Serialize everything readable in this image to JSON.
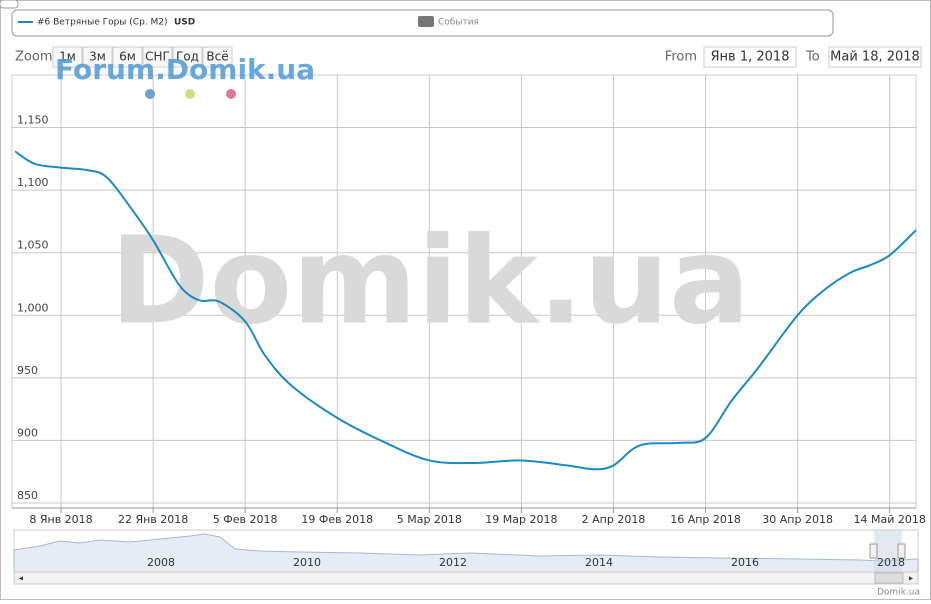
{
  "legend": {
    "series_unit": "USD",
    "events": "События"
  },
  "zoom": {
    "label": "Zoom",
    "buttons": [
      "1м",
      "3м",
      "6м",
      "СНГ",
      "Год",
      "Всё"
    ]
  },
  "range": {
    "from_label": "From",
    "from": "Янв 1, 2018",
    "to_label": "To",
    "to": "Май 18, 2018"
  },
  "watermarks": {
    "forum": "Forum.Domik.ua",
    "main": "Domik.ua"
  },
  "navigator": {
    "years": [
      "2008",
      "2010",
      "2012",
      "2014",
      "2016",
      "2018"
    ]
  },
  "credit": "Domik.ua",
  "chart_data": {
    "type": "line",
    "x": [
      "2018-01-01",
      "2018-01-04",
      "2018-01-08",
      "2018-01-12",
      "2018-01-15",
      "2018-01-19",
      "2018-01-22",
      "2018-01-26",
      "2018-01-29",
      "2018-02-01",
      "2018-02-05",
      "2018-02-08",
      "2018-02-12",
      "2018-02-19",
      "2018-02-26",
      "2018-03-05",
      "2018-03-12",
      "2018-03-19",
      "2018-03-26",
      "2018-03-30",
      "2018-04-02",
      "2018-04-06",
      "2018-04-12",
      "2018-04-16",
      "2018-04-20",
      "2018-04-24",
      "2018-04-30",
      "2018-05-04",
      "2018-05-08",
      "2018-05-11",
      "2018-05-14",
      "2018-05-18"
    ],
    "series": [
      {
        "name": "#6 Ветряные Горы (Ср. М2)",
        "color": "#1a8bc4",
        "values": [
          1131,
          1121,
          1118,
          1116,
          1110,
          1083,
          1060,
          1024,
          1012,
          1011,
          995,
          968,
          944,
          918,
          899,
          884,
          882,
          884,
          880,
          877,
          880,
          896,
          898,
          902,
          932,
          958,
          1000,
          1020,
          1034,
          1040,
          1048,
          1068
        ]
      }
    ],
    "xlim": [
      "2018-01-01",
      "2018-05-18"
    ],
    "xticks": [
      {
        "value": "2018-01-08",
        "label": "8 Янв 2018"
      },
      {
        "value": "2018-01-22",
        "label": "22 Янв 2018"
      },
      {
        "value": "2018-02-05",
        "label": "5 Фев 2018"
      },
      {
        "value": "2018-02-19",
        "label": "19 Фев 2018"
      },
      {
        "value": "2018-03-05",
        "label": "5 Мар 2018"
      },
      {
        "value": "2018-03-19",
        "label": "19 Мар 2018"
      },
      {
        "value": "2018-04-02",
        "label": "2 Апр 2018"
      },
      {
        "value": "2018-04-16",
        "label": "16 Апр 2018"
      },
      {
        "value": "2018-04-30",
        "label": "30 Апр 2018"
      },
      {
        "value": "2018-05-14",
        "label": "14 Май 2018"
      }
    ],
    "ylim": [
      846,
      1192
    ],
    "yticks": [
      850,
      900,
      950,
      {
        "value": 1000,
        "label": "1,000"
      },
      {
        "value": 1050,
        "label": "1,050"
      },
      {
        "value": 1100,
        "label": "1,100"
      },
      {
        "value": 1150,
        "label": "1,150"
      }
    ],
    "grid": true
  }
}
